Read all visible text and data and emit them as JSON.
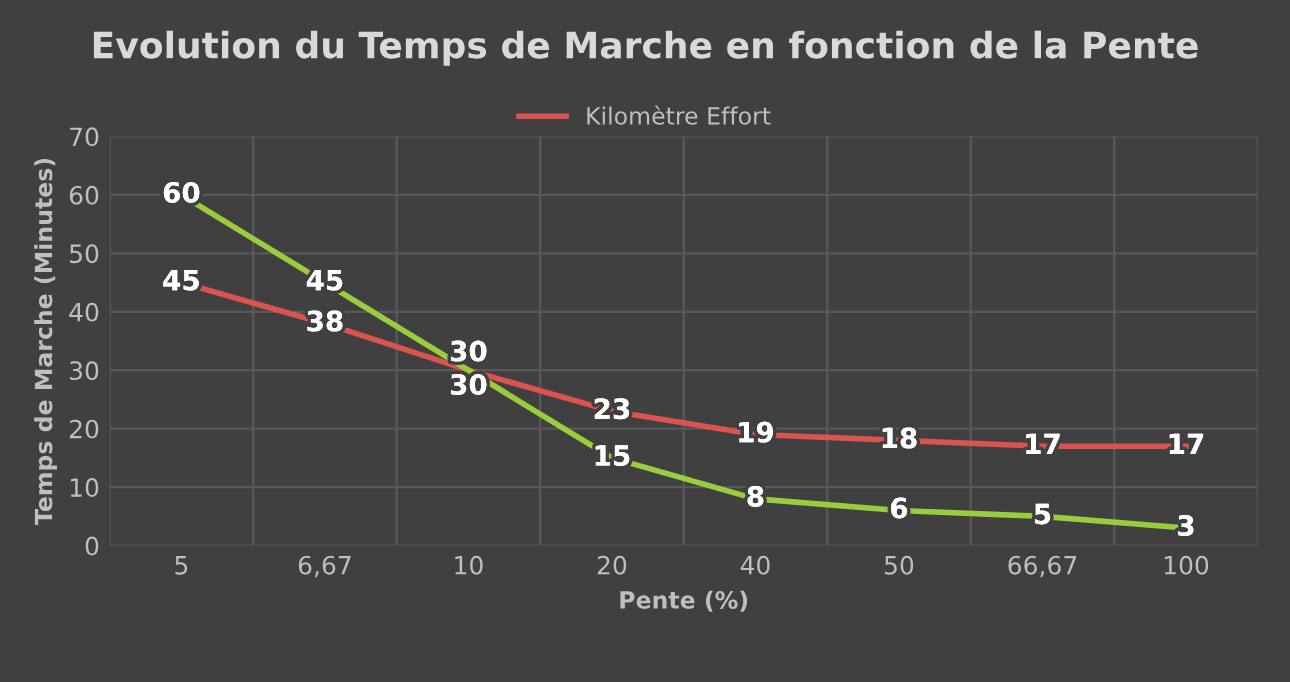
{
  "chart_data": {
    "type": "line",
    "title": "Evolution du Temps de Marche en fonction de la Pente",
    "xlabel": "Pente (%)",
    "ylabel": "Temps de Marche (Minutes)",
    "categories": [
      "5",
      "6,67",
      "10",
      "20",
      "40",
      "50",
      "66,67",
      "100"
    ],
    "series": [
      {
        "name": "Kilomètre Effort",
        "color": "#d9534f",
        "values": [
          45,
          38,
          30,
          23,
          19,
          18,
          17,
          17
        ]
      },
      {
        "color": "#9acd3c",
        "values": [
          60,
          45,
          30,
          15,
          8,
          6,
          5,
          3
        ]
      }
    ],
    "ylim": [
      0,
      70
    ],
    "yticks": [
      0,
      10,
      20,
      30,
      40,
      50,
      60,
      70
    ],
    "grid": true,
    "legend": "top",
    "data_labels": true,
    "marker": "none",
    "line_style": "solid"
  }
}
